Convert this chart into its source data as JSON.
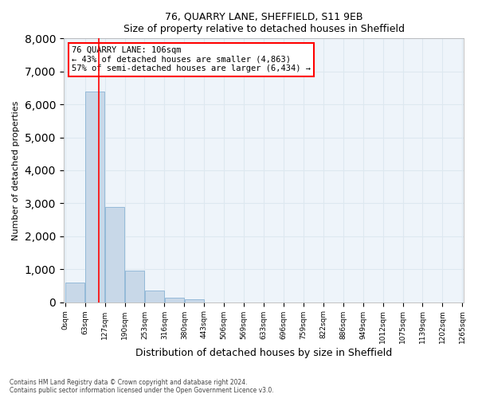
{
  "title1": "76, QUARRY LANE, SHEFFIELD, S11 9EB",
  "title2": "Size of property relative to detached houses in Sheffield",
  "xlabel": "Distribution of detached houses by size in Sheffield",
  "ylabel": "Number of detached properties",
  "bar_values": [
    600,
    6380,
    2900,
    960,
    360,
    140,
    80,
    0,
    0,
    0,
    0,
    0,
    0,
    0,
    0,
    0,
    0,
    0,
    0,
    0
  ],
  "bar_labels": [
    "0sqm",
    "63sqm",
    "127sqm",
    "190sqm",
    "253sqm",
    "316sqm",
    "380sqm",
    "443sqm",
    "506sqm",
    "569sqm",
    "633sqm",
    "696sqm",
    "759sqm",
    "822sqm",
    "886sqm",
    "949sqm",
    "1012sqm",
    "1075sqm",
    "1139sqm",
    "1202sqm",
    "1265sqm"
  ],
  "n_bins": 20,
  "bin_width": 63,
  "ylim": [
    0,
    8000
  ],
  "yticks": [
    0,
    1000,
    2000,
    3000,
    4000,
    5000,
    6000,
    7000,
    8000
  ],
  "property_size": 106,
  "property_label": "76 QUARRY LANE: 106sqm",
  "annotation_line1": "← 43% of detached houses are smaller (4,863)",
  "annotation_line2": "57% of semi-detached houses are larger (6,434) →",
  "vline_x": 106,
  "bar_color": "#c8d8e8",
  "bar_edgecolor": "#7aaacf",
  "vline_color": "red",
  "grid_color": "#dde8f0",
  "bg_color": "#eef4fa",
  "footnote1": "Contains HM Land Registry data © Crown copyright and database right 2024.",
  "footnote2": "Contains public sector information licensed under the Open Government Licence v3.0."
}
